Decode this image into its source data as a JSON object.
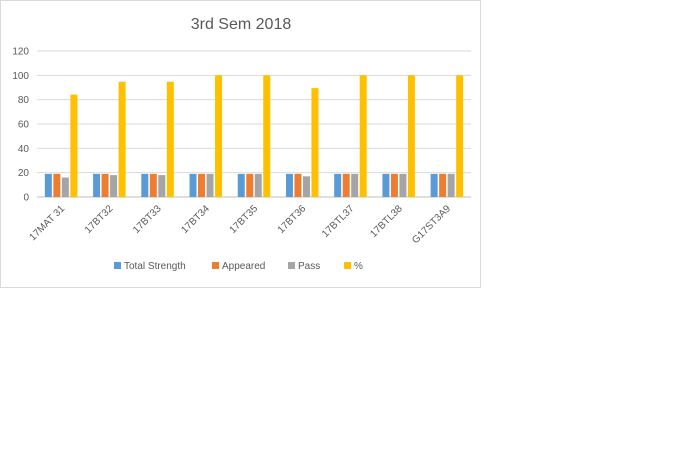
{
  "chart_data": {
    "type": "bar",
    "title": "3rd Sem  2018",
    "xlabel": "",
    "ylabel": "",
    "ylim": [
      0,
      120
    ],
    "yticks": [
      0,
      20,
      40,
      60,
      80,
      100,
      120
    ],
    "grid": true,
    "legend_position": "bottom",
    "categories": [
      "17MAT 31",
      "17BT32",
      "17BT33",
      "17BT34",
      "17BT35",
      "17BT36",
      "17BTL37",
      "17BTL38",
      "G17ST3A9"
    ],
    "series": [
      {
        "name": "Total Strength",
        "color": "#5b9bd5",
        "values": [
          19,
          19,
          19,
          19,
          19,
          19,
          19,
          19,
          19
        ]
      },
      {
        "name": "Appeared",
        "color": "#ed7d31",
        "values": [
          19,
          19,
          19,
          19,
          19,
          19,
          19,
          19,
          19
        ]
      },
      {
        "name": "Pass",
        "color": "#a5a5a5",
        "values": [
          16,
          18,
          18,
          19,
          19,
          17,
          19,
          19,
          19
        ]
      },
      {
        "name": "%",
        "color": "#ffc000",
        "values": [
          84.2,
          94.7,
          94.7,
          100,
          100,
          89.5,
          100,
          100,
          100
        ]
      }
    ]
  }
}
